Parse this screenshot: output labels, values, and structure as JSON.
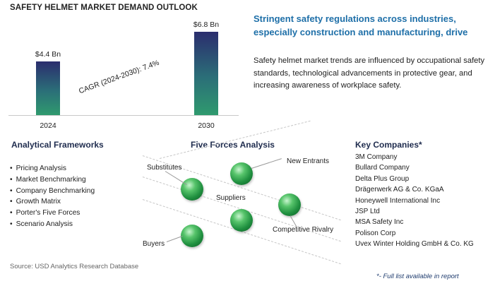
{
  "title": "SAFETY HELMET MARKET DEMAND OUTLOOK",
  "chart_data": {
    "type": "bar",
    "categories": [
      "2024",
      "2030"
    ],
    "values": [
      4.4,
      6.8
    ],
    "value_labels": [
      "$4.4 Bn",
      "$6.8 Bn"
    ],
    "annotation": "CAGR (2024-2030):  7.4%",
    "grid": false
  },
  "headline": "Stringent safety regulations across industries, especially construction and manufacturing, drive",
  "description": "Safety helmet market trends are influenced by occupational safety standards, technological advancements in protective gear, and increasing awareness of workplace safety.",
  "frameworks": {
    "title": "Analytical Frameworks",
    "items": [
      "Pricing Analysis",
      "Market Benchmarking",
      "Company Benchmarking",
      "Growth Matrix",
      "Porter's Five Forces",
      "Scenario Analysis"
    ]
  },
  "five_forces": {
    "title": "Five Forces Analysis",
    "labels": {
      "substitutes": "Substitutes",
      "new_entrants": "New Entrants",
      "suppliers": "Suppliers",
      "competitive_rivalry": "Competitive Rivalry",
      "buyers": "Buyers"
    }
  },
  "companies": {
    "title": "Key Companies*",
    "items": [
      "3M Company",
      "Bullard Company",
      "Delta Plus Group",
      "Drägerwerk AG & Co. KGaA",
      "Honeywell International Inc",
      "JSP Ltd",
      "MSA Safety Inc",
      "Polison Corp",
      "Uvex Winter Holding GmbH & Co. KG"
    ]
  },
  "source": "Source: USD Analytics Research Database",
  "footnote": "*- Full list available in report"
}
